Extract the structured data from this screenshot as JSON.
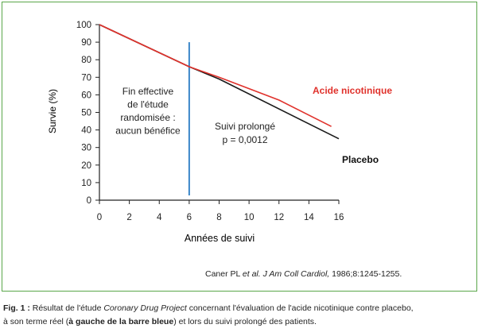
{
  "chart_data": {
    "type": "line",
    "ylabel": "Survie (%)",
    "xlabel": "Années de suivi",
    "xlim": [
      0,
      16
    ],
    "ylim": [
      0,
      100
    ],
    "x_ticks": [
      0,
      2,
      4,
      6,
      8,
      10,
      12,
      14,
      16
    ],
    "y_ticks": [
      0,
      10,
      20,
      30,
      40,
      50,
      60,
      70,
      80,
      90,
      100
    ],
    "grid": false,
    "series": [
      {
        "name": "Acide nicotinique",
        "color": "#e0312b",
        "x": [
          0,
          6,
          8,
          12,
          15.5
        ],
        "y": [
          100,
          76,
          70,
          57,
          42
        ]
      },
      {
        "name": "Placebo",
        "color": "#1a1a1a",
        "x": [
          0,
          6,
          8,
          16
        ],
        "y": [
          100,
          76,
          69,
          35
        ]
      }
    ],
    "vline": {
      "x": 6,
      "y_top": 90,
      "color": "#3a86c8"
    },
    "annotations": {
      "left": [
        "Fin effective",
        "de l'étude",
        "randomisée :",
        "aucun bénéfice"
      ],
      "right": [
        "Suivi prolongé",
        "p = 0,0012"
      ]
    }
  },
  "reference": {
    "authors": "Caner PL ",
    "etal": "et al. J Am Coll Cardiol,",
    "details": " 1986;8:1245-1255."
  },
  "caption": {
    "fig": "Fig. 1 :",
    "t1": " Résultat de l'étude ",
    "study": "Coronary Drug Project",
    "t2": " concernant l'évaluation de l'acide nicotinique contre placebo,",
    "t3": "à son terme réel (",
    "bold_part": "à gauche de la barre bleue",
    "t4": ") et lors du suivi prolongé des patients."
  }
}
